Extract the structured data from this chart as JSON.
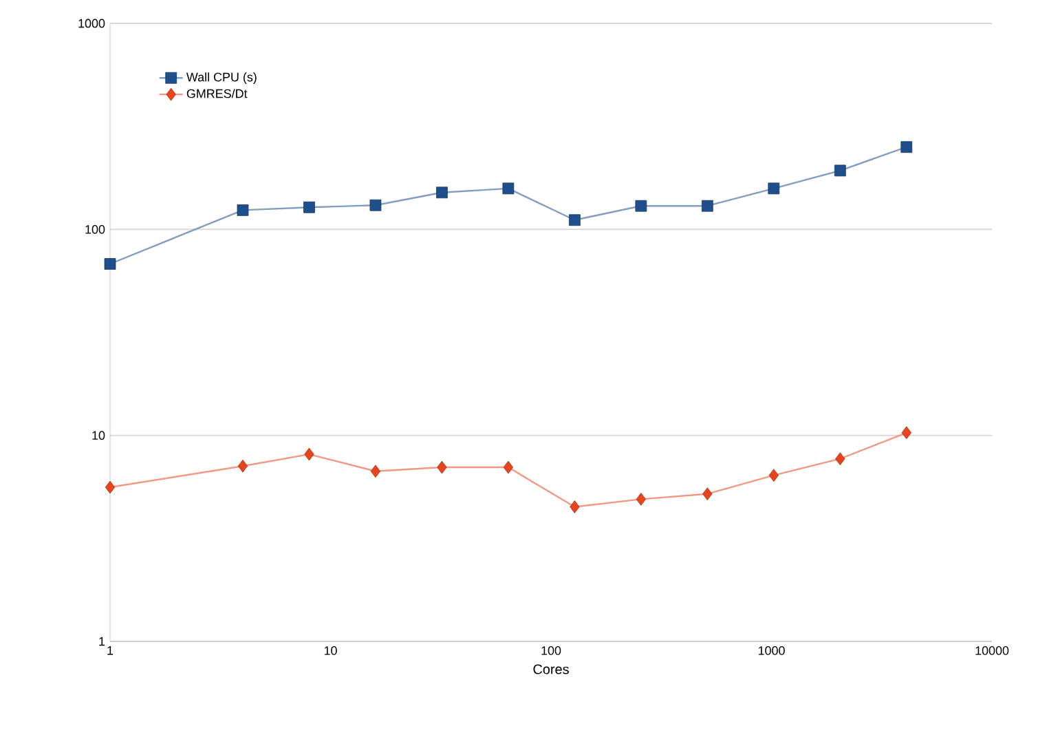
{
  "chart_data": {
    "type": "line",
    "xlabel": "Cores",
    "log": "xy",
    "x": [
      1,
      4,
      8,
      16,
      32,
      64,
      128,
      256,
      512,
      1024,
      2048,
      4096
    ],
    "series": [
      {
        "name": "Wall CPU (s)",
        "color": "#1f4e8c",
        "marker": "square",
        "values": [
          68,
          124,
          128,
          131,
          151,
          158,
          111,
          130,
          130,
          158,
          193,
          251
        ]
      },
      {
        "name": "GMRES/Dt",
        "color": "#e8451e",
        "marker": "diamond",
        "values": [
          5.6,
          7.1,
          8.1,
          6.7,
          7.0,
          7.0,
          4.5,
          4.9,
          5.2,
          6.4,
          7.7,
          10.3
        ]
      }
    ],
    "xlim": [
      1,
      10000
    ],
    "ylim": [
      1,
      1000
    ],
    "xticks": [
      1,
      10,
      100,
      1000,
      10000
    ],
    "yticks": [
      1,
      10,
      100,
      1000
    ],
    "grid": "y",
    "legend": "top left",
    "line_style": "solid"
  }
}
